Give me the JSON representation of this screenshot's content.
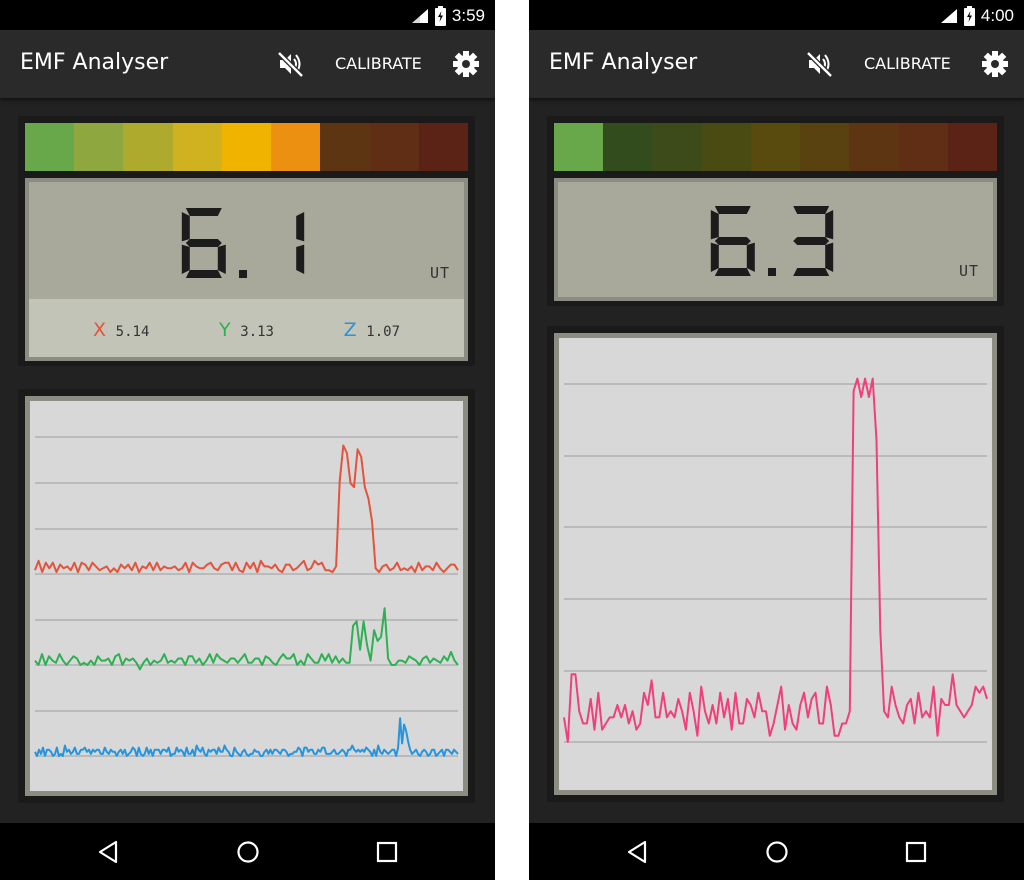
{
  "colors": {
    "x_axis": "#e4533c",
    "y_axis": "#2fb052",
    "z_axis": "#2795dd",
    "magnitude_line": "#f0407a",
    "level_on": [
      "#69a74b",
      "#8fa73f",
      "#aeaa2d",
      "#d0b11f",
      "#f0b400",
      "#eb9010",
      "#5e3512",
      "#5f2e14",
      "#5b2216"
    ],
    "level_off": [
      "#69a74b",
      "#334c1e",
      "#3d4a1a",
      "#4a4a13",
      "#594b0e",
      "#5a4210",
      "#5e3512",
      "#5f2e14",
      "#5b2216"
    ]
  },
  "left": {
    "status": {
      "time": "3:59"
    },
    "app": {
      "title": "EMF Analyser",
      "calibrate": "CALIBRATE",
      "mute_icon": "volume-off-icon",
      "settings_icon": "gear-icon"
    },
    "meter": {
      "value": "6.1",
      "unit": "UT",
      "active_segments": 6
    },
    "axes": [
      {
        "letter": "X",
        "value": "5.14"
      },
      {
        "letter": "Y",
        "value": "3.13"
      },
      {
        "letter": "Z",
        "value": "1.07"
      }
    ],
    "graph": {
      "series": [
        {
          "axis": "X",
          "values": [
            5.2,
            5.7,
            5.1,
            5.6,
            5.3,
            5.6,
            5.1,
            5.5,
            5.3,
            5.4,
            5.2,
            5.6,
            5.1,
            5.6,
            5.5,
            5.2,
            5.6,
            5.4,
            5.2,
            5.3,
            5.4,
            5.1,
            5.3,
            5.1,
            5.5,
            5.3,
            5.5,
            5.2,
            5.6,
            5.1,
            5.4,
            5.3,
            5.6,
            5.2,
            5.6,
            5.2,
            5.4,
            5.3,
            5.3,
            5.4,
            5.2,
            5.3,
            5.6,
            5.1,
            5.6,
            5.4,
            5.3,
            5.3,
            5.5,
            5.6,
            5.3,
            5.2,
            5.5,
            5.6,
            5.6,
            5.2,
            5.6,
            5.2,
            5.1,
            5.6,
            5.3,
            5.6,
            5.1,
            5.7,
            5.4,
            5.4,
            5.3,
            5.5,
            5.2,
            5.1,
            5.5,
            5.5,
            5.2,
            5.3,
            5.5,
            5.7,
            5.2,
            5.3,
            5.7,
            5.5,
            5.6,
            5.2,
            5.2,
            5.1,
            5.4,
            9.9,
            11.8,
            11.4,
            9.8,
            9.6,
            11.6,
            11.2,
            9.6,
            9.0,
            7.8,
            5.3,
            5.1,
            5.4,
            5.5,
            5.2,
            5.3,
            5.6,
            5.2,
            5.3,
            5.2,
            5.4,
            5.1,
            5.6,
            5.2,
            5.4,
            5.4,
            5.2,
            5.6,
            5.3,
            5.1,
            5.3,
            5.5,
            5.5,
            5.2
          ]
        },
        {
          "axis": "Y",
          "values": [
            3.2,
            3.0,
            3.5,
            3.0,
            3.4,
            3.2,
            3.1,
            3.5,
            3.2,
            3.0,
            3.2,
            3.4,
            3.3,
            3.0,
            3.1,
            3.0,
            3.2,
            3.0,
            3.4,
            3.2,
            3.2,
            3.3,
            3.0,
            3.4,
            3.5,
            3.0,
            3.3,
            3.2,
            3.3,
            3.1,
            2.8,
            3.1,
            3.3,
            3.0,
            3.2,
            3.1,
            3.2,
            3.5,
            3.1,
            3.2,
            3.1,
            3.3,
            3.3,
            3.0,
            3.4,
            3.4,
            3.1,
            3.3,
            3.0,
            3.2,
            3.5,
            3.1,
            3.5,
            3.3,
            3.2,
            3.1,
            3.3,
            3.3,
            3.1,
            3.3,
            3.5,
            3.1,
            3.1,
            3.3,
            3.3,
            3.0,
            3.4,
            3.3,
            3.1,
            3.0,
            3.3,
            3.5,
            3.3,
            3.3,
            3.5,
            3.0,
            3.2,
            3.0,
            3.5,
            3.3,
            3.1,
            3.1,
            3.5,
            3.2,
            3.5,
            3.1,
            3.4,
            3.1,
            3.3,
            3.1,
            3.1,
            4.8,
            5.0,
            3.7,
            5.0,
            3.9,
            3.2,
            4.6,
            4.1,
            4.3,
            5.6,
            3.3,
            3.0,
            3.0,
            3.2,
            3.2,
            3.1,
            3.4,
            3.3,
            3.2,
            3.0,
            3.3,
            3.4,
            3.1,
            3.3,
            3.2,
            3.1,
            3.4,
            3.2,
            3.6,
            3.2,
            3.0
          ]
        },
        {
          "axis": "Z",
          "values": [
            1.2,
            1.0,
            1.3,
            1.1,
            1.4,
            1.0,
            1.3,
            1.3,
            1.2,
            1.0,
            1.1,
            1.4,
            1.0,
            1.1,
            1.0,
            1.5,
            1.2,
            1.3,
            1.1,
            1.2,
            1.4,
            1.1,
            1.1,
            1.3,
            1.3,
            1.4,
            1.2,
            1.3,
            1.1,
            1.3,
            1.2,
            1.3,
            1.3,
            1.1,
            1.1,
            1.4,
            1.2,
            1.1,
            1.3,
            1.2,
            1.2,
            1.0,
            1.2,
            1.3,
            1.1,
            1.3,
            1.0,
            1.1,
            1.2,
            1.4,
            1.3,
            1.0,
            1.4,
            1.1,
            1.0,
            1.1,
            1.4,
            1.1,
            1.3,
            1.0,
            1.3,
            1.3,
            1.3,
            1.1,
            1.3,
            1.3,
            1.2,
            1.4,
            1.0,
            1.1,
            1.1,
            1.4,
            1.2,
            1.3,
            1.2,
            1.0,
            1.4,
            1.1,
            1.1,
            1.3,
            1.0,
            1.5,
            1.3,
            1.2,
            1.4,
            1.1,
            1.0,
            1.3,
            1.2,
            1.3,
            1.3,
            1.1,
            1.4,
            1.2,
            1.2,
            1.5,
            1.3,
            1.2,
            1.0,
            1.0,
            1.4,
            1.2,
            1.1,
            1.0,
            1.2,
            1.3,
            1.1,
            1.0,
            1.1,
            1.1,
            1.3,
            1.2,
            1.2,
            1.0,
            1.0,
            1.2,
            1.3,
            1.1,
            1.3,
            1.1,
            1.3,
            1.3,
            1.2,
            1.1,
            1.3,
            1.3,
            1.2,
            1.0,
            1.1,
            1.1,
            1.2,
            1.2,
            1.4,
            1.3,
            1.0,
            1.4,
            1.4,
            1.2,
            1.3,
            1.3,
            1.1,
            1.1,
            1.3,
            1.2,
            1.4,
            1.4,
            1.1,
            1.1,
            1.1,
            1.2,
            1.3,
            1.1,
            1.1,
            1.2,
            1.3,
            1.2,
            1.0,
            1.3,
            1.3,
            1.5,
            1.3,
            1.2,
            1.3,
            1.2,
            1.3,
            1.2,
            1.4,
            1.3,
            1.2,
            1.0,
            1.3,
            1.0,
            1.5,
            1.2,
            1.1,
            1.3,
            1.2,
            1.1,
            1.2,
            1.3,
            1.3,
            1.0,
            1.4,
            2.8,
            1.6,
            2.5,
            2.2,
            1.7,
            1.3,
            1.1,
            1.2,
            1.3,
            1.1,
            1.0,
            1.2,
            1.3,
            1.2,
            1.0,
            1.1,
            1.3,
            1.3,
            1.0,
            1.1,
            1.2,
            1.3,
            1.0,
            1.3,
            1.3,
            1.2,
            1.1,
            1.3,
            1.2,
            1.1
          ]
        }
      ]
    },
    "nav": {
      "back_icon": "back-icon",
      "home_icon": "home-icon",
      "recents_icon": "recents-icon"
    }
  },
  "right": {
    "status": {
      "time": "4:00"
    },
    "app": {
      "title": "EMF Analyser",
      "calibrate": "CALIBRATE",
      "mute_icon": "volume-off-icon",
      "settings_icon": "gear-icon"
    },
    "meter": {
      "value": "6.3",
      "unit": "UT",
      "active_segments": 1
    },
    "graph": {
      "series": [
        {
          "axis": "magnitude",
          "values": [
            6.4,
            6.0,
            7.1,
            7.1,
            6.5,
            6.3,
            6.3,
            6.7,
            6.2,
            6.8,
            6.2,
            6.3,
            6.4,
            6.4,
            6.6,
            6.4,
            6.6,
            6.3,
            6.5,
            6.2,
            6.3,
            6.8,
            6.6,
            7.0,
            6.4,
            6.4,
            6.8,
            6.4,
            6.5,
            6.4,
            6.7,
            6.5,
            6.2,
            6.8,
            6.5,
            6.1,
            6.9,
            6.5,
            6.3,
            6.6,
            6.3,
            6.8,
            6.4,
            6.7,
            6.2,
            6.8,
            6.3,
            6.3,
            6.7,
            6.6,
            6.4,
            6.8,
            6.5,
            6.5,
            6.1,
            6.3,
            6.6,
            6.9,
            6.2,
            6.6,
            6.3,
            6.2,
            6.6,
            6.8,
            6.4,
            6.7,
            6.8,
            6.3,
            6.3,
            6.9,
            6.6,
            6.1,
            6.1,
            6.3,
            6.3,
            6.5,
            11.7,
            11.9,
            11.6,
            11.9,
            11.6,
            11.9,
            10.9,
            7.8,
            6.5,
            6.4,
            6.9,
            6.6,
            6.4,
            6.3,
            6.6,
            6.7,
            6.3,
            6.8,
            6.4,
            6.5,
            6.4,
            6.9,
            6.1,
            6.7,
            6.6,
            6.6,
            7.1,
            6.6,
            6.5,
            6.4,
            6.5,
            6.6,
            6.9,
            6.8,
            6.9,
            6.7
          ]
        }
      ]
    },
    "nav": {
      "back_icon": "back-icon",
      "home_icon": "home-icon",
      "recents_icon": "recents-icon"
    }
  }
}
